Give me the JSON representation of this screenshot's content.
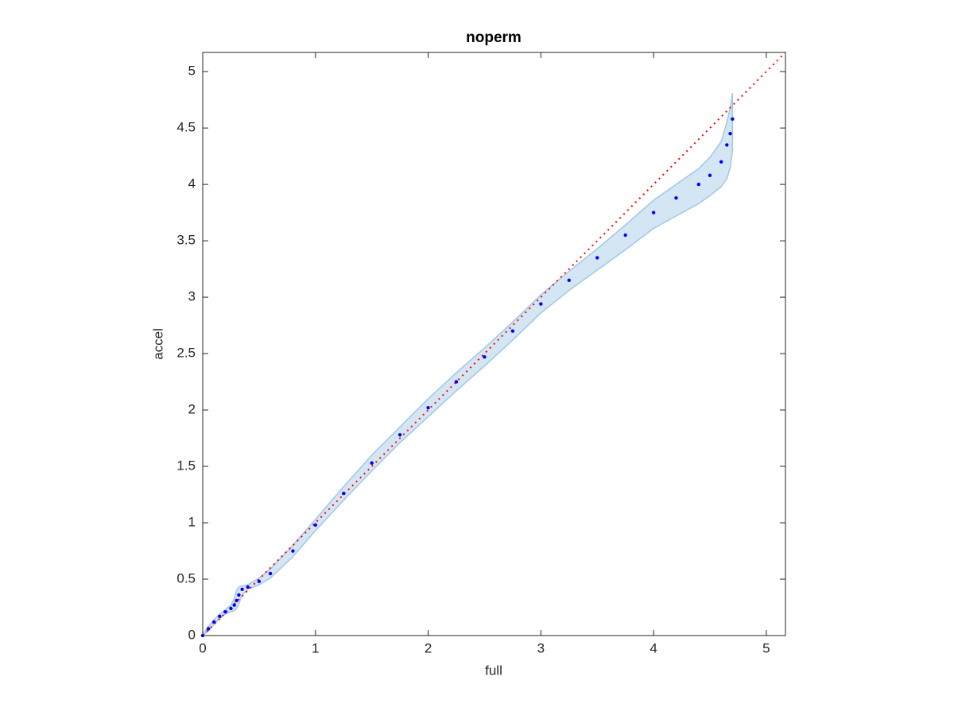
{
  "chart_data": {
    "type": "scatter",
    "title": "noperm",
    "x_label": "full",
    "y_label": "accel",
    "xlim": [
      0,
      5.17
    ],
    "ylim": [
      0,
      5.17
    ],
    "xticks": [
      0,
      1,
      2,
      3,
      4,
      5
    ],
    "yticks": [
      0,
      0.5,
      1,
      1.5,
      2,
      2.5,
      3,
      3.5,
      4,
      4.5,
      5
    ],
    "x": [
      0,
      0.05,
      0.1,
      0.15,
      0.2,
      0.25,
      0.28,
      0.3,
      0.32,
      0.35,
      0.4,
      0.5,
      0.6,
      0.8,
      1.0,
      1.25,
      1.5,
      1.75,
      2.0,
      2.25,
      2.5,
      2.75,
      3.0,
      3.25,
      3.5,
      3.75,
      4.0,
      4.2,
      4.4,
      4.5,
      4.6,
      4.65,
      4.68,
      4.7
    ],
    "series": [
      {
        "color": "#0000ff",
        "values": [
          0,
          0.06,
          0.12,
          0.17,
          0.21,
          0.24,
          0.27,
          0.31,
          0.36,
          0.41,
          0.43,
          0.48,
          0.55,
          0.75,
          0.98,
          1.26,
          1.53,
          1.78,
          2.02,
          2.25,
          2.47,
          2.7,
          2.94,
          3.15,
          3.35,
          3.55,
          3.75,
          3.88,
          4.0,
          4.08,
          4.2,
          4.35,
          4.45,
          4.58
        ]
      }
    ],
    "band": {
      "color": "#9fc7e6",
      "upper": [
        0.01,
        0.08,
        0.14,
        0.19,
        0.23,
        0.27,
        0.33,
        0.4,
        0.43,
        0.44,
        0.45,
        0.51,
        0.59,
        0.8,
        1.03,
        1.32,
        1.6,
        1.85,
        2.1,
        2.33,
        2.55,
        2.78,
        3.02,
        3.23,
        3.43,
        3.64,
        3.86,
        4.0,
        4.14,
        4.24,
        4.38,
        4.55,
        4.68,
        4.81
      ],
      "lower": [
        0,
        0.04,
        0.1,
        0.15,
        0.19,
        0.21,
        0.22,
        0.24,
        0.28,
        0.36,
        0.41,
        0.45,
        0.51,
        0.7,
        0.93,
        1.2,
        1.46,
        1.71,
        1.94,
        2.17,
        2.39,
        2.62,
        2.86,
        3.06,
        3.24,
        3.42,
        3.61,
        3.72,
        3.83,
        3.9,
        3.98,
        4.05,
        4.15,
        4.3
      ]
    },
    "reference_line": {
      "color": "#ff0000",
      "x": [
        0,
        5.17
      ],
      "y": [
        0,
        5.17
      ]
    }
  }
}
